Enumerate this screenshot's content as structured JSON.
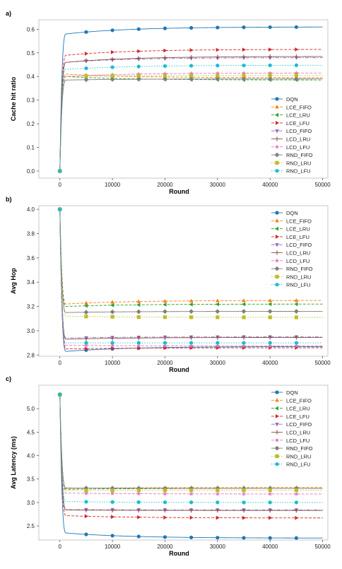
{
  "series_styles": [
    {
      "name": "DQN",
      "color": "#1f77b4",
      "marker": "circle",
      "dash": "solid"
    },
    {
      "name": "LCE_FIFO",
      "color": "#ff7f0e",
      "marker": "triUp",
      "dash": "dash"
    },
    {
      "name": "LCE_LRU",
      "color": "#2ca02c",
      "marker": "triLeft",
      "dash": "dash"
    },
    {
      "name": "LCE_LFU",
      "color": "#d62728",
      "marker": "triRight",
      "dash": "dash"
    },
    {
      "name": "LCD_FIFO",
      "color": "#9467bd",
      "marker": "triDown",
      "dash": "dashdot"
    },
    {
      "name": "LCD_LRU",
      "color": "#8c564b",
      "marker": "plus",
      "dash": "solid"
    },
    {
      "name": "LCD_LFU",
      "color": "#e377c2",
      "marker": "star",
      "dash": "dash"
    },
    {
      "name": "RND_FIFO",
      "color": "#7f7f7f",
      "marker": "diamond",
      "dash": "solid"
    },
    {
      "name": "RND_LRU",
      "color": "#bcbd22",
      "marker": "square",
      "dash": "dot"
    },
    {
      "name": "RND_LFU",
      "color": "#17becf",
      "marker": "hexagon",
      "dash": "dot"
    }
  ],
  "chart_data": [
    {
      "panel_label": "a)",
      "type": "line",
      "xlabel": "Round",
      "ylabel": "Cache hit ratio",
      "xlim": [
        -4000,
        51000
      ],
      "ylim": [
        -0.03,
        0.64
      ],
      "xticks": [
        0,
        10000,
        20000,
        30000,
        40000,
        50000
      ],
      "xtick_labels": [
        "0",
        "10000",
        "20000",
        "30000",
        "40000",
        "50000"
      ],
      "yticks": [
        0.0,
        0.1,
        0.2,
        0.3,
        0.4,
        0.5,
        0.6
      ],
      "ytick_labels": [
        "0.0",
        "0.1",
        "0.2",
        "0.3",
        "0.4",
        "0.5",
        "0.6"
      ],
      "legend_position": "lower right",
      "marker_x": [
        0,
        5000,
        10000,
        15000,
        20000,
        25000,
        30000,
        35000,
        40000,
        45000
      ],
      "series": [
        {
          "name": "DQN",
          "start": 0.0,
          "peak": 0.58,
          "final": 0.61
        },
        {
          "name": "LCE_FIFO",
          "start": 0.0,
          "peak": 0.41,
          "final": 0.395
        },
        {
          "name": "LCE_LRU",
          "start": 0.0,
          "peak": 0.4,
          "final": 0.385
        },
        {
          "name": "LCE_LFU",
          "start": 0.0,
          "peak": 0.49,
          "final": 0.515
        },
        {
          "name": "LCD_FIFO",
          "start": 0.0,
          "peak": 0.46,
          "final": 0.48
        },
        {
          "name": "LCD_LRU",
          "start": 0.0,
          "peak": 0.46,
          "final": 0.485
        },
        {
          "name": "LCD_LFU",
          "start": 0.0,
          "peak": 0.4,
          "final": 0.415
        },
        {
          "name": "RND_FIFO",
          "start": 0.0,
          "peak": 0.385,
          "final": 0.39
        },
        {
          "name": "RND_LRU",
          "start": 0.0,
          "peak": 0.4,
          "final": 0.405
        },
        {
          "name": "RND_LFU",
          "start": 0.0,
          "peak": 0.43,
          "final": 0.448
        }
      ]
    },
    {
      "panel_label": "b)",
      "type": "line",
      "xlabel": "Round",
      "ylabel": "Avg Hop",
      "xlim": [
        -4000,
        51000
      ],
      "ylim": [
        2.79,
        4.03
      ],
      "xticks": [
        0,
        10000,
        20000,
        30000,
        40000,
        50000
      ],
      "xtick_labels": [
        "0",
        "10000",
        "20000",
        "30000",
        "40000",
        "50000"
      ],
      "yticks": [
        2.8,
        3.0,
        3.2,
        3.4,
        3.6,
        3.8,
        4.0
      ],
      "ytick_labels": [
        "2.8",
        "3.0",
        "3.2",
        "3.4",
        "3.6",
        "3.8",
        "4.0"
      ],
      "legend_position": "upper right",
      "marker_x": [
        0,
        5000,
        10000,
        15000,
        20000,
        25000,
        30000,
        35000,
        40000,
        45000
      ],
      "series": [
        {
          "name": "DQN",
          "start": 4.0,
          "peak": 2.83,
          "final": 2.87
        },
        {
          "name": "LCE_FIFO",
          "start": 4.0,
          "peak": 3.22,
          "final": 3.25
        },
        {
          "name": "LCE_LRU",
          "start": 4.0,
          "peak": 3.2,
          "final": 3.22
        },
        {
          "name": "LCE_LFU",
          "start": 4.0,
          "peak": 2.85,
          "final": 2.86
        },
        {
          "name": "LCD_FIFO",
          "start": 4.0,
          "peak": 2.94,
          "final": 2.95
        },
        {
          "name": "LCD_LRU",
          "start": 4.0,
          "peak": 2.93,
          "final": 2.945
        },
        {
          "name": "LCD_LFU",
          "start": 4.0,
          "peak": 2.88,
          "final": 2.875
        },
        {
          "name": "RND_FIFO",
          "start": 4.0,
          "peak": 3.15,
          "final": 3.16
        },
        {
          "name": "RND_LRU",
          "start": 4.0,
          "peak": 3.12,
          "final": 3.11
        },
        {
          "name": "RND_LFU",
          "start": 4.0,
          "peak": 2.9,
          "final": 2.9
        }
      ]
    },
    {
      "panel_label": "c)",
      "type": "line",
      "xlabel": "Round",
      "ylabel": "Avg Latency (ms)",
      "xlim": [
        -4000,
        51000
      ],
      "ylim": [
        2.2,
        5.5
      ],
      "xticks": [
        0,
        10000,
        20000,
        30000,
        40000,
        50000
      ],
      "xtick_labels": [
        "0",
        "10000",
        "20000",
        "30000",
        "40000",
        "50000"
      ],
      "yticks": [
        2.5,
        3.0,
        3.5,
        4.0,
        4.5,
        5.0
      ],
      "ytick_labels": [
        "2.5",
        "3.0",
        "3.5",
        "4.0",
        "4.5",
        "5.0"
      ],
      "legend_position": "upper right",
      "marker_x": [
        0,
        5000,
        10000,
        15000,
        20000,
        25000,
        30000,
        35000,
        40000,
        45000
      ],
      "series": [
        {
          "name": "DQN",
          "start": 5.3,
          "peak": 2.35,
          "final": 2.24
        },
        {
          "name": "LCE_FIFO",
          "start": 5.3,
          "peak": 3.3,
          "final": 3.32
        },
        {
          "name": "LCE_LRU",
          "start": 5.3,
          "peak": 3.28,
          "final": 3.3
        },
        {
          "name": "LCE_LFU",
          "start": 5.3,
          "peak": 2.72,
          "final": 2.67
        },
        {
          "name": "LCD_FIFO",
          "start": 5.3,
          "peak": 2.85,
          "final": 2.84
        },
        {
          "name": "LCD_LRU",
          "start": 5.3,
          "peak": 2.84,
          "final": 2.83
        },
        {
          "name": "LCD_LFU",
          "start": 5.3,
          "peak": 3.2,
          "final": 3.18
        },
        {
          "name": "RND_FIFO",
          "start": 5.3,
          "peak": 3.31,
          "final": 3.3
        },
        {
          "name": "RND_LRU",
          "start": 5.3,
          "peak": 3.25,
          "final": 3.26
        },
        {
          "name": "RND_LFU",
          "start": 5.3,
          "peak": 3.02,
          "final": 3.0
        }
      ]
    }
  ]
}
